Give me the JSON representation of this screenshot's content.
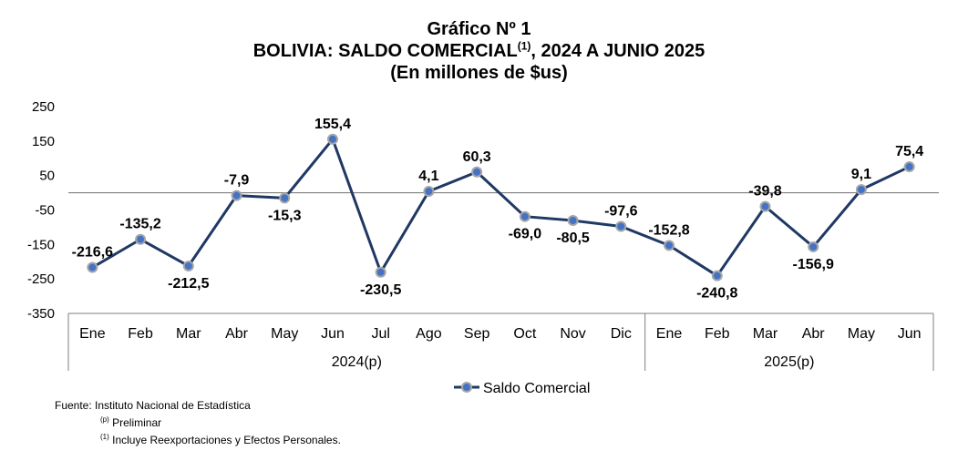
{
  "title": {
    "line1": "Gráfico Nº 1",
    "line2_main": "BOLIVIA: SALDO COMERCIAL",
    "line2_sup": "(1)",
    "line2_rest": ", 2024 A JUNIO 2025",
    "line3": "(En millones de $us)"
  },
  "chart_data": {
    "type": "line",
    "categories": [
      "Ene",
      "Feb",
      "Mar",
      "Abr",
      "May",
      "Jun",
      "Jul",
      "Ago",
      "Sep",
      "Oct",
      "Nov",
      "Dic",
      "Ene",
      "Feb",
      "Mar",
      "Abr",
      "May",
      "Jun"
    ],
    "groups": [
      {
        "label": "2024(p)",
        "start": 0,
        "end": 11
      },
      {
        "label": "2025(p)",
        "start": 12,
        "end": 17
      }
    ],
    "series": [
      {
        "name": "Saldo Comercial",
        "values": [
          -216.6,
          -135.2,
          -212.5,
          -7.9,
          -15.3,
          155.4,
          -230.5,
          4.1,
          60.3,
          -69.0,
          -80.5,
          -97.6,
          -152.8,
          -240.8,
          -39.8,
          -156.9,
          9.1,
          75.4
        ],
        "data_labels": [
          "-216,6",
          "-135,2",
          "-212,5",
          "-7,9",
          "-15,3",
          "155,4",
          "-230,5",
          "4,1",
          "60,3",
          "-69,0",
          "-80,5",
          "-97,6",
          "-152,8",
          "-240,8",
          "-39,8",
          "-156,9",
          "9,1",
          "75,4"
        ],
        "color": "#1f3864",
        "marker_color": "#4472c4"
      }
    ],
    "y_ticks": [
      "250",
      "150",
      "50",
      "-50",
      "-150",
      "-250",
      "-350"
    ],
    "y_tick_values": [
      250,
      150,
      50,
      -50,
      -150,
      -250,
      -350
    ],
    "ylim": [
      -350,
      250
    ],
    "zero_line": true,
    "grid": false,
    "legend_position": "bottom-center"
  },
  "footnotes": {
    "source": "Fuente: Instituto Nacional de Estadística",
    "note_p_sup": "(p)",
    "note_p": " Preliminar",
    "note_1_sup": "(1)",
    "note_1": " Incluye Reexportaciones y Efectos Personales."
  }
}
